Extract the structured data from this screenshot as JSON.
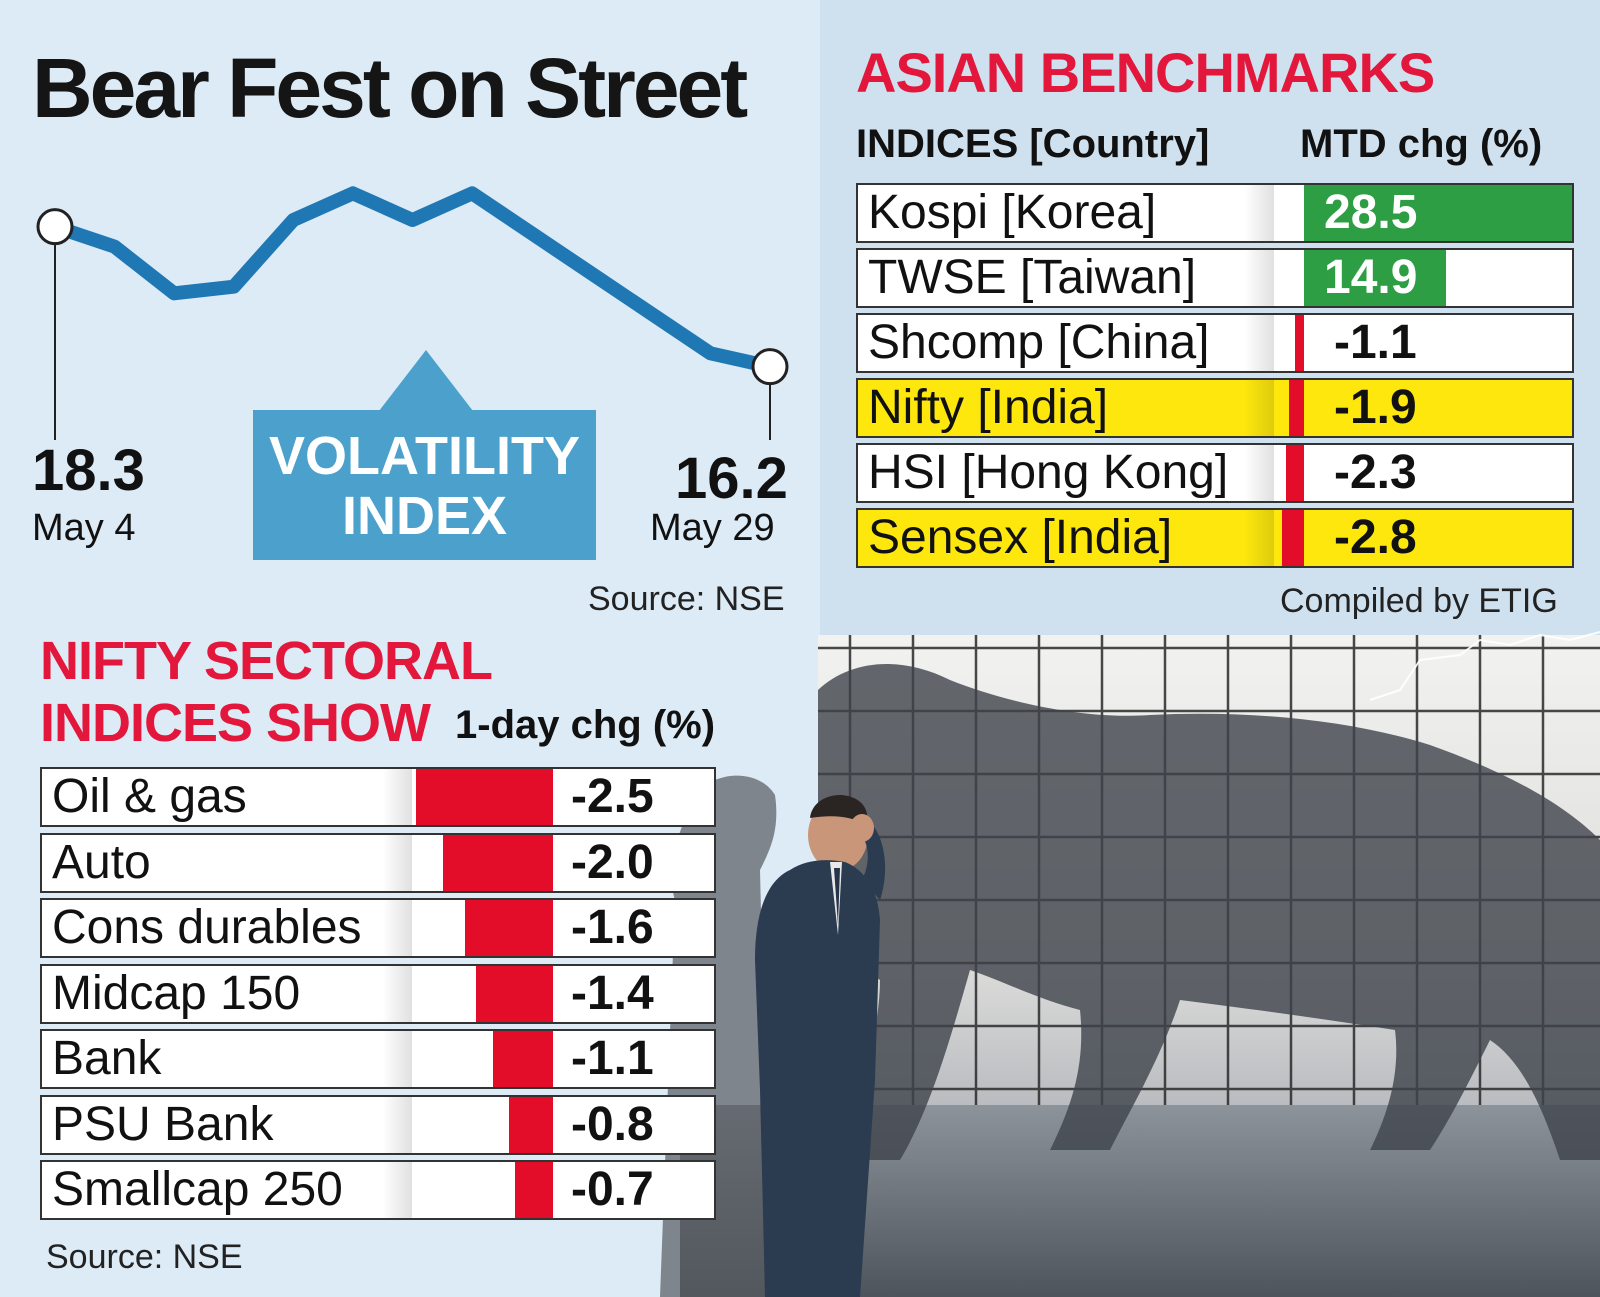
{
  "title": "Bear Fest on Street",
  "volatility": {
    "label_line1": "VOLATILITY",
    "label_line2": "INDEX",
    "start_value": "18.3",
    "start_date": "May 4",
    "end_value": "16.2",
    "end_date": "May 29",
    "source": "Source: NSE",
    "line_color": "#1f78b4"
  },
  "asian": {
    "heading": "ASIAN BENCHMARKS",
    "col1": "INDICES [Country]",
    "col2": "MTD chg (%)",
    "source": "Compiled by ETIG",
    "rows": [
      {
        "label": "Kospi [Korea]",
        "value": "28.5",
        "highlight": false
      },
      {
        "label": "TWSE [Taiwan]",
        "value": "14.9",
        "highlight": false
      },
      {
        "label": "Shcomp [China]",
        "value": "-1.1",
        "highlight": false
      },
      {
        "label": "Nifty [India]",
        "value": "-1.9",
        "highlight": true
      },
      {
        "label": "HSI [Hong Kong]",
        "value": "-2.3",
        "highlight": false
      },
      {
        "label": "Sensex [India]",
        "value": "-2.8",
        "highlight": true
      }
    ]
  },
  "sectoral": {
    "heading_line1": "NIFTY SECTORAL",
    "heading_line2": "INDICES SHOW",
    "col": "1-day chg (%)",
    "source": "Source: NSE",
    "rows": [
      {
        "label": "Oil & gas",
        "value": "-2.5"
      },
      {
        "label": "Auto",
        "value": "-2.0"
      },
      {
        "label": "Cons durables",
        "value": "-1.6"
      },
      {
        "label": "Midcap 150",
        "value": "-1.4"
      },
      {
        "label": "Bank",
        "value": "-1.1"
      },
      {
        "label": "PSU Bank",
        "value": "-0.8"
      },
      {
        "label": "Smallcap 250",
        "value": "-0.7"
      }
    ]
  },
  "colors": {
    "positive": "#2e9e44",
    "negative": "#e30d2a",
    "highlight": "#fde70d",
    "accent_red": "#e2173b",
    "vix_box": "#4ba1cc"
  },
  "chart_data": [
    {
      "type": "line",
      "series": [
        {
          "values": [
            18.3,
            18.0,
            17.3,
            17.4,
            18.4,
            18.8,
            18.4,
            18.8,
            18.2,
            17.6,
            17.0,
            16.4,
            16.2
          ]
        }
      ]
    },
    {
      "type": "bar",
      "categories": [
        "Kospi [Korea]",
        "TWSE [Taiwan]",
        "Shcomp [China]",
        "Nifty [India]",
        "HSI [Hong Kong]",
        "Sensex [India]"
      ],
      "values": [
        28.5,
        14.9,
        -1.1,
        -1.9,
        -2.3,
        -2.8
      ]
    },
    {
      "type": "bar",
      "categories": [
        "Oil & gas",
        "Auto",
        "Cons durables",
        "Midcap 150",
        "Bank",
        "PSU Bank",
        "Smallcap 250"
      ],
      "values": [
        -2.5,
        -2.0,
        -1.6,
        -1.4,
        -1.1,
        -0.8,
        -0.7
      ]
    }
  ]
}
